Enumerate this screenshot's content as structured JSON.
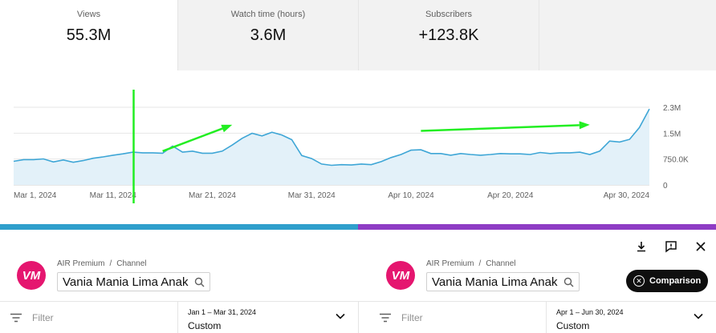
{
  "metrics": [
    {
      "label": "Views",
      "value": "55.3M"
    },
    {
      "label": "Watch time (hours)",
      "value": "3.6M"
    },
    {
      "label": "Subscribers",
      "value": "+123.8K"
    },
    {
      "label": "",
      "value": ""
    }
  ],
  "colors": {
    "line": "#3ea6d6",
    "area": "#e3f1f9",
    "annotation": "#22ee22",
    "left_bar": "#2f9fcc",
    "right_bar": "#8e3cc4",
    "avatar": "#e5166f"
  },
  "chart_data": {
    "type": "area",
    "x_ticks": [
      "Mar 1, 2024",
      "Mar 11, 2024",
      "Mar 21, 2024",
      "Mar 31, 2024",
      "Apr 10, 2024",
      "Apr 20, 2024",
      "Apr 30, 2024"
    ],
    "y_ticks": [
      "2.3M",
      "1.5M",
      "750.0K",
      "0"
    ],
    "ylim": [
      0,
      2300000
    ],
    "grid": true,
    "series": [
      {
        "x_start": "2024-03-01",
        "values": [
          700000,
          750000,
          750000,
          770000,
          680000,
          740000,
          670000,
          720000,
          790000,
          830000,
          880000,
          920000,
          970000,
          950000,
          950000,
          940000,
          1150000,
          970000,
          1000000,
          940000,
          940000,
          1000000,
          1180000,
          1380000,
          1530000,
          1450000,
          1560000,
          1480000,
          1340000,
          870000,
          780000,
          620000,
          580000,
          600000,
          590000,
          620000,
          600000,
          690000,
          810000,
          900000,
          1030000,
          1040000,
          930000,
          930000,
          880000,
          930000,
          900000,
          880000,
          900000,
          930000,
          920000,
          920000,
          900000,
          960000,
          930000,
          950000,
          950000,
          970000,
          900000,
          1000000,
          1300000,
          1270000,
          1350000,
          1700000,
          2250000
        ]
      }
    ],
    "annotations": [
      {
        "kind": "vertical-line",
        "x": "2024-03-13"
      },
      {
        "kind": "arrow",
        "from": [
          "2024-03-16",
          1000000
        ],
        "to": [
          "2024-03-23",
          1780000
        ]
      },
      {
        "kind": "arrow",
        "from": [
          "2024-04-11",
          1600000
        ],
        "to": [
          "2024-04-28",
          1780000
        ]
      }
    ]
  },
  "toolbar": {
    "download_icon": "download-icon",
    "feedback_icon": "feedback-icon",
    "close_icon": "close-icon"
  },
  "left_panel": {
    "breadcrumb": [
      "AIR Premium",
      "Channel"
    ],
    "channel_name": "Vania Mania Lima Anak",
    "avatar_text": "VM",
    "filter_placeholder": "Filter",
    "date_range": "Jan 1 – Mar 31, 2024",
    "date_mode": "Custom"
  },
  "right_panel": {
    "breadcrumb": [
      "AIR Premium",
      "Channel"
    ],
    "channel_name": "Vania Mania Lima Anak",
    "avatar_text": "VM",
    "filter_placeholder": "Filter",
    "date_range": "Apr 1 – Jun 30, 2024",
    "date_mode": "Custom",
    "compare_button": "Comparison"
  }
}
